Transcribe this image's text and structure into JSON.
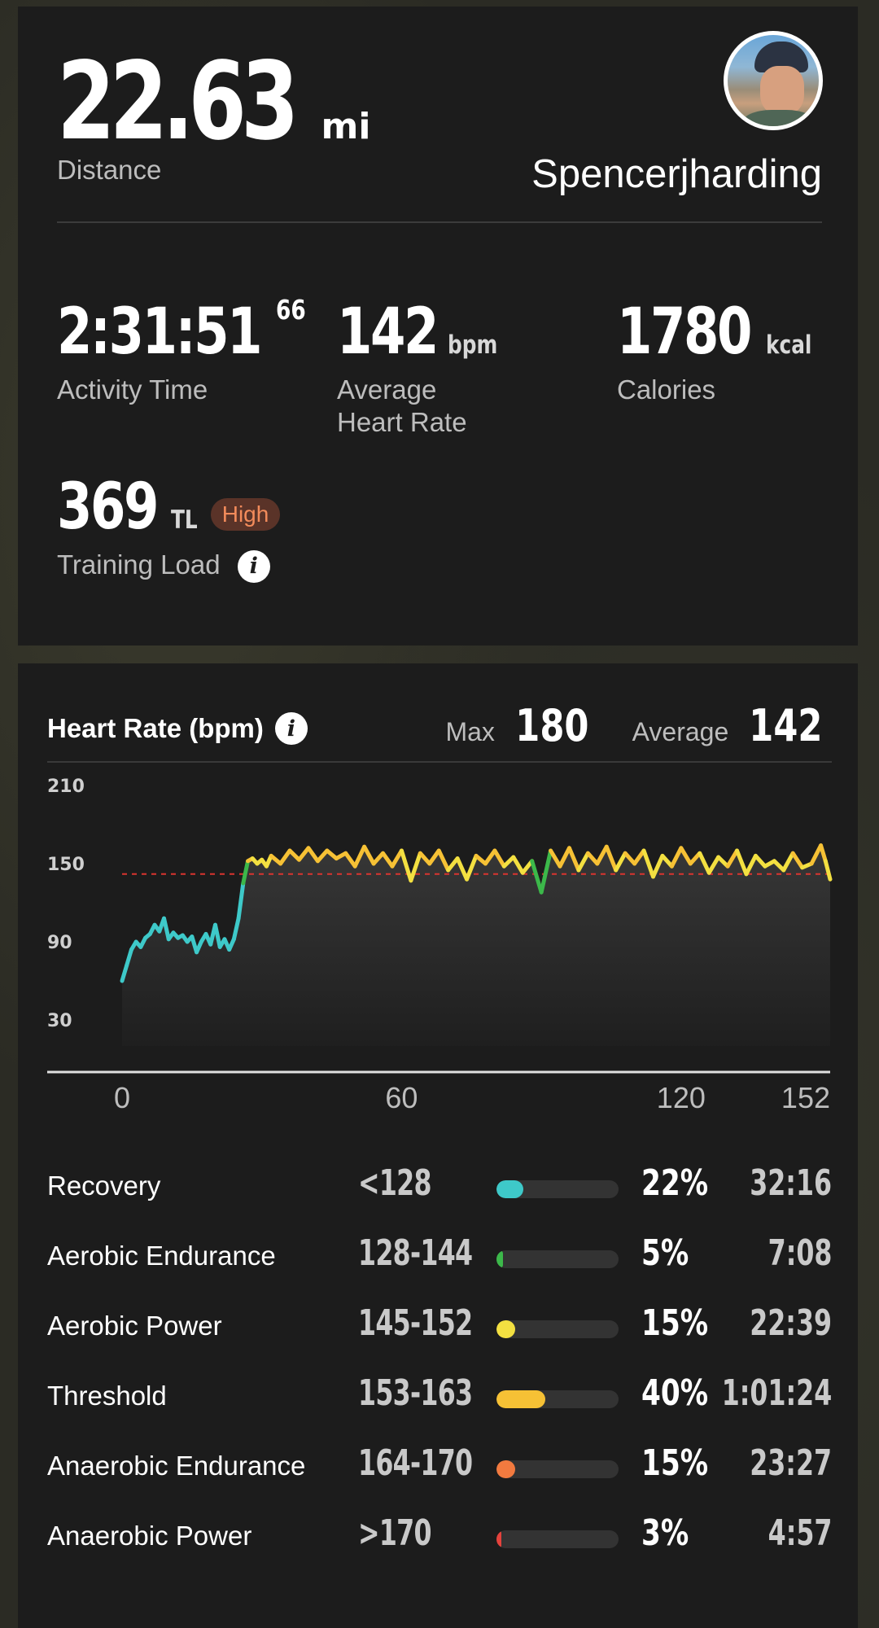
{
  "summary": {
    "distance_value": "22.63",
    "distance_unit": "mi",
    "distance_label": "Distance",
    "username": "Spencerjharding",
    "activity_time_main": "2:31:51",
    "activity_time_sub": "66",
    "activity_time_label": "Activity Time",
    "avg_hr_value": "142",
    "avg_hr_unit": "bpm",
    "avg_hr_label_line1": "Average",
    "avg_hr_label_line2": "Heart Rate",
    "calories_value": "1780",
    "calories_unit": "kcal",
    "calories_label": "Calories",
    "training_load_value": "369",
    "training_load_unit": "TL",
    "training_load_badge": "High",
    "training_load_label": "Training Load"
  },
  "heart_rate": {
    "title": "Heart Rate (bpm)",
    "max_label": "Max",
    "max_value": "180",
    "avg_label": "Average",
    "avg_value": "142"
  },
  "chart_data": {
    "type": "line",
    "title": "Heart Rate (bpm)",
    "xlabel": "",
    "ylabel": "",
    "y_ticks": [
      210,
      150,
      90,
      30
    ],
    "x_ticks": [
      0,
      60,
      120,
      152
    ],
    "xlim": [
      0,
      152
    ],
    "ylim": [
      10,
      210
    ],
    "average_line": 142,
    "x": [
      0,
      1,
      2,
      3,
      4,
      5,
      6,
      7,
      8,
      9,
      10,
      11,
      12,
      13,
      14,
      15,
      16,
      17,
      18,
      19,
      20,
      21,
      22,
      23,
      24,
      25,
      26,
      27,
      28,
      29,
      30,
      31,
      32,
      34,
      36,
      38,
      40,
      42,
      44,
      46,
      48,
      50,
      52,
      54,
      56,
      58,
      60,
      62,
      64,
      66,
      68,
      70,
      72,
      74,
      76,
      78,
      80,
      82,
      84,
      86,
      88,
      90,
      92,
      94,
      96,
      98,
      100,
      102,
      104,
      106,
      108,
      110,
      112,
      114,
      116,
      118,
      120,
      122,
      124,
      126,
      128,
      130,
      132,
      134,
      136,
      138,
      140,
      142,
      144,
      146,
      148,
      150,
      151,
      152
    ],
    "y": [
      60,
      72,
      84,
      90,
      86,
      93,
      96,
      103,
      98,
      108,
      92,
      97,
      93,
      95,
      90,
      94,
      82,
      90,
      96,
      88,
      103,
      86,
      92,
      84,
      92,
      108,
      135,
      152,
      154,
      150,
      153,
      148,
      156,
      150,
      160,
      153,
      162,
      152,
      160,
      154,
      158,
      148,
      163,
      150,
      158,
      148,
      160,
      137,
      158,
      150,
      160,
      145,
      154,
      138,
      156,
      150,
      160,
      148,
      155,
      143,
      152,
      128,
      160,
      148,
      162,
      145,
      158,
      150,
      163,
      145,
      158,
      150,
      160,
      140,
      156,
      148,
      162,
      150,
      158,
      143,
      155,
      148,
      160,
      142,
      156,
      148,
      152,
      145,
      158,
      147,
      150,
      164,
      152,
      138
    ],
    "zone_colors": {
      "recovery": "#3ec9c9",
      "aerobic_endurance": "#3cb84a",
      "aerobic_power": "#f3e041",
      "threshold": "#f6c135",
      "anaerobic_endurance": "#f27a3f",
      "anaerobic_power": "#e5423c"
    }
  },
  "zones": [
    {
      "name": "Recovery",
      "range": "<128",
      "percent": "22%",
      "fraction": 0.22,
      "time": "32:16",
      "color": "#3ec9c9"
    },
    {
      "name": "Aerobic Endurance",
      "range": "128-144",
      "percent": "5%",
      "fraction": 0.05,
      "time": "7:08",
      "color": "#3cb84a"
    },
    {
      "name": "Aerobic Power",
      "range": "145-152",
      "percent": "15%",
      "fraction": 0.15,
      "time": "22:39",
      "color": "#f3e041"
    },
    {
      "name": "Threshold",
      "range": "153-163",
      "percent": "40%",
      "fraction": 0.4,
      "time": "1:01:24",
      "color": "#f6c135"
    },
    {
      "name": "Anaerobic Endurance",
      "range": "164-170",
      "percent": "15%",
      "fraction": 0.15,
      "time": "23:27",
      "color": "#f27a3f"
    },
    {
      "name": "Anaerobic Power",
      "range": ">170",
      "percent": "3%",
      "fraction": 0.03,
      "time": "4:57",
      "color": "#e5423c"
    }
  ]
}
